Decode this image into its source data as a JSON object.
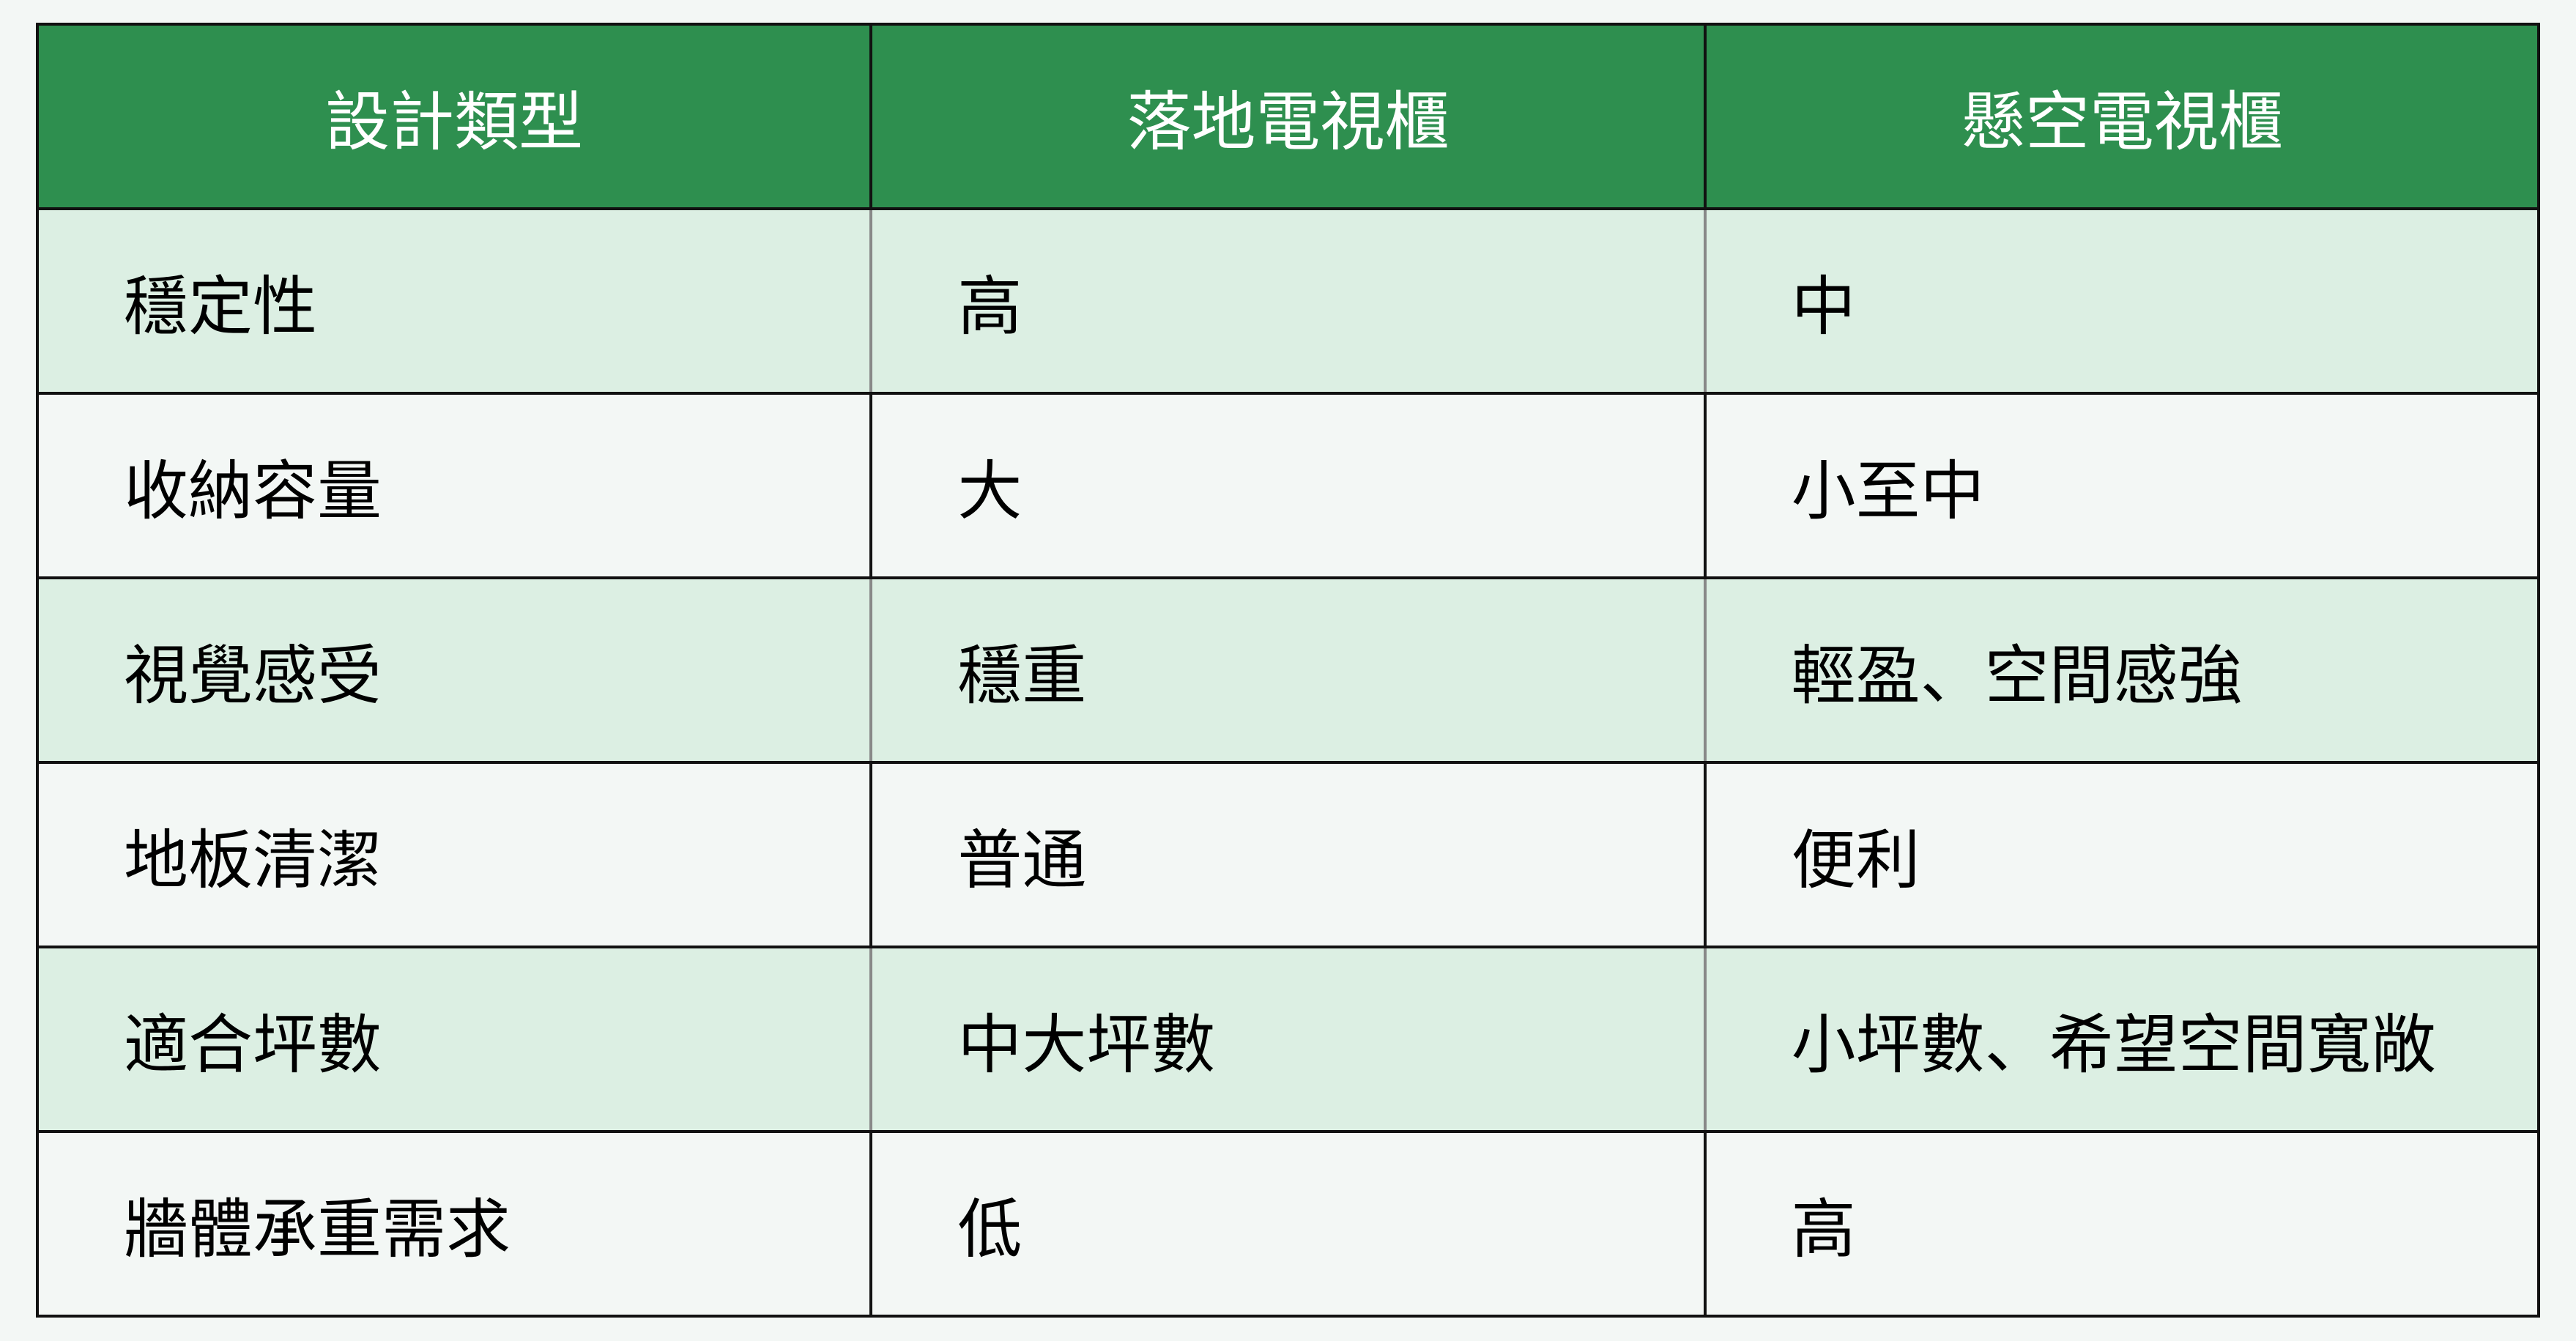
{
  "table": {
    "headers": [
      "設計類型",
      "落地電視櫃",
      "懸空電視櫃"
    ],
    "rows": [
      [
        "穩定性",
        "高",
        "中"
      ],
      [
        "收納容量",
        "大",
        "小至中"
      ],
      [
        "視覺感受",
        "穩重",
        "輕盈、空間感強"
      ],
      [
        "地板清潔",
        "普通",
        "便利"
      ],
      [
        "適合坪數",
        "中大坪數",
        "小坪數、希望空間寬敞"
      ],
      [
        "牆體承重需求",
        "低",
        "高"
      ]
    ]
  },
  "colors": {
    "header_bg": "#2e8f4f",
    "shaded_row_bg": "#dcefe3",
    "page_bg": "#f3f7f5"
  }
}
